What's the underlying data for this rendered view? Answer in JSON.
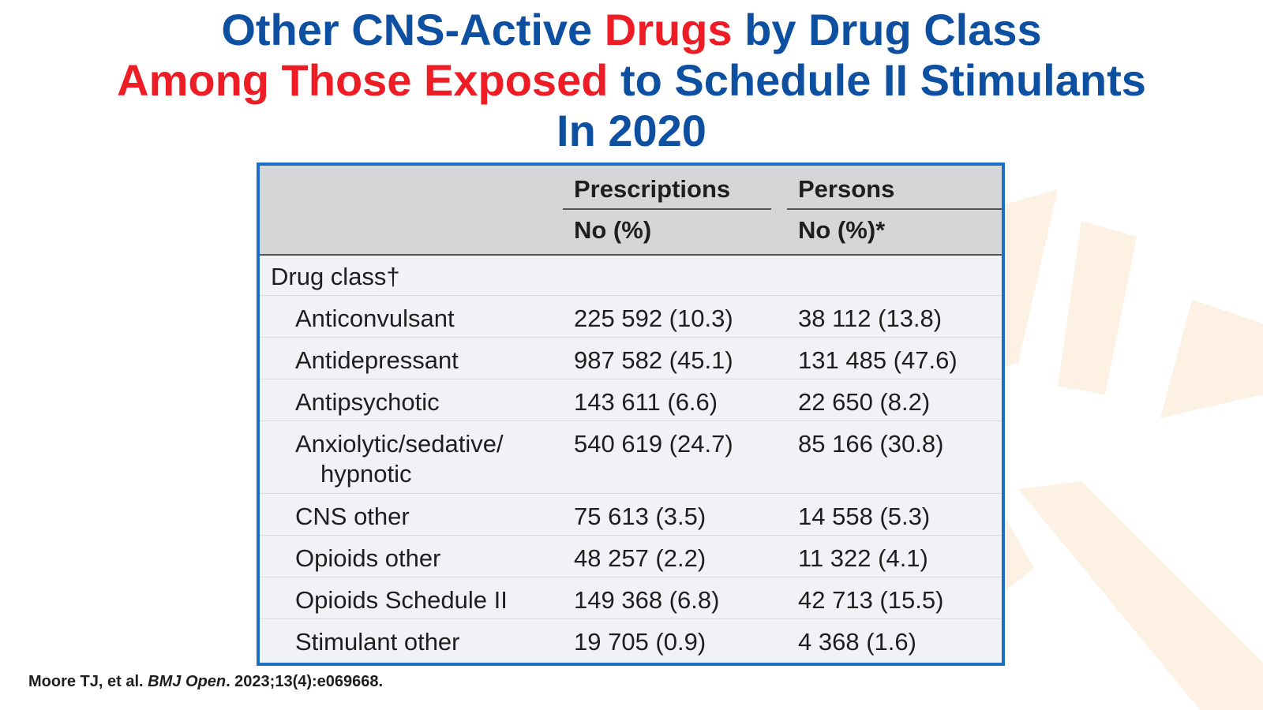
{
  "title": {
    "line1_a": "Other CNS-Active ",
    "line1_b": "Drugs",
    "line1_c": " by Drug Class",
    "line2_a": "Among Those Exposed",
    "line2_b": " to Schedule II Stimulants",
    "line3": "In 2020"
  },
  "colors": {
    "title_blue": "#0d4fa0",
    "title_red": "#ee1c24",
    "frame_blue": "#1b6fc7"
  },
  "table": {
    "col1_header": "Prescriptions",
    "col2_header": "Persons",
    "col1_sub": "No (%)",
    "col2_sub": "No (%)*",
    "group_label": "Drug class†",
    "rows": [
      {
        "label": "Anticonvulsant",
        "prescriptions": "225 592 (10.3)",
        "persons": "38 112 (13.8)"
      },
      {
        "label": "Antidepressant",
        "prescriptions": "987 582 (45.1)",
        "persons": "131 485 (47.6)"
      },
      {
        "label": "Antipsychotic",
        "prescriptions": "143 611 (6.6)",
        "persons": "22 650 (8.2)"
      },
      {
        "label": "Anxiolytic/sedative/",
        "label_cont": "hypnotic",
        "prescriptions": "540 619 (24.7)",
        "persons": "85 166 (30.8)"
      },
      {
        "label": "CNS other",
        "prescriptions": "75 613 (3.5)",
        "persons": "14 558 (5.3)"
      },
      {
        "label": "Opioids other",
        "prescriptions": "48 257 (2.2)",
        "persons": "11 322 (4.1)"
      },
      {
        "label": "Opioids Schedule II",
        "prescriptions": "149 368 (6.8)",
        "persons": "42 713 (15.5)"
      },
      {
        "label": "Stimulant other",
        "prescriptions": "19 705 (0.9)",
        "persons": "4 368 (1.6)"
      }
    ]
  },
  "citation": {
    "authors": "Moore TJ, et al. ",
    "journal": "BMJ Open",
    "details": ". 2023;13(4):e069668."
  }
}
